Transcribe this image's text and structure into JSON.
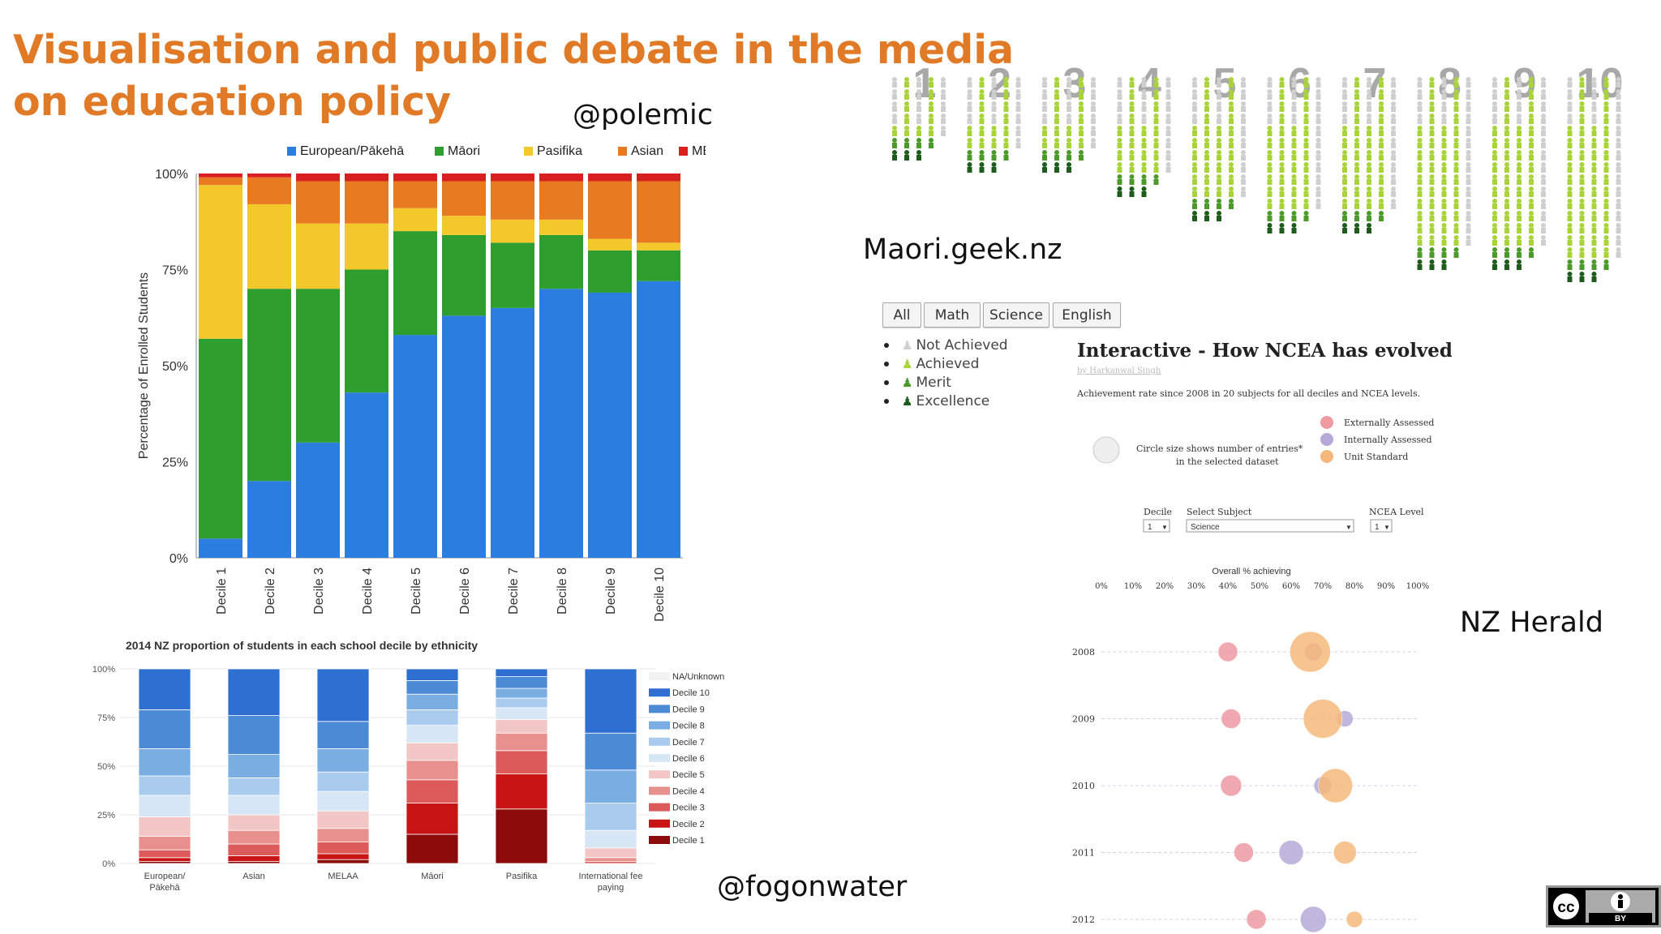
{
  "slide": {
    "title": "Visualisation and public debate in the media on education policy",
    "credits": {
      "polemic": "@polemic",
      "maori_geek": "Maori.geek.nz",
      "fogonwater": "@fogonwater",
      "nz_herald": "NZ Herald"
    },
    "license_badge": {
      "cc": "cc",
      "by": "BY"
    }
  },
  "chart_data": [
    {
      "id": "ethnicity_by_decile",
      "type": "bar",
      "stacked": true,
      "categories": [
        "Decile 1",
        "Decile 2",
        "Decile 3",
        "Decile 4",
        "Decile 5",
        "Decile 6",
        "Decile 7",
        "Decile 8",
        "Decile 9",
        "Decile 10"
      ],
      "ylabel": "Percentage of Enrolled Students",
      "ylim": [
        0,
        100
      ],
      "yticks": [
        "0%",
        "25%",
        "50%",
        "75%",
        "100%"
      ],
      "legend_placement": "top",
      "series": [
        {
          "name": "European/Pākehā",
          "color": "#2b7de0",
          "values": [
            5,
            20,
            30,
            43,
            58,
            63,
            65,
            70,
            69,
            72
          ]
        },
        {
          "name": "Māori",
          "color": "#2e9e2e",
          "values": [
            52,
            50,
            40,
            32,
            27,
            21,
            17,
            14,
            11,
            8
          ]
        },
        {
          "name": "Pasifika",
          "color": "#f2c82a",
          "values": [
            40,
            22,
            17,
            12,
            6,
            5,
            6,
            4,
            3,
            2
          ]
        },
        {
          "name": "Asian",
          "color": "#e87a22",
          "values": [
            2,
            7,
            11,
            11,
            7,
            9,
            10,
            10,
            15,
            16
          ]
        },
        {
          "name": "MELAA",
          "color": "#d82020",
          "values": [
            1,
            1,
            2,
            2,
            2,
            2,
            2,
            2,
            2,
            2
          ]
        }
      ]
    },
    {
      "id": "decile_by_ethnicity",
      "type": "bar",
      "stacked": true,
      "title": "2014 NZ proportion of students in each school decile by ethnicity",
      "categories": [
        "European/\nPākehā",
        "Asian",
        "MELAA",
        "Māori",
        "Pasifika",
        "International fee\npaying"
      ],
      "ylim": [
        0,
        100
      ],
      "yticks": [
        "0%",
        "25%",
        "50%",
        "75%",
        "100%"
      ],
      "legend_placement": "right",
      "series": [
        {
          "name": "Decile 1",
          "color": "#8b0a0a",
          "values": [
            1,
            1,
            2,
            15,
            28,
            0
          ]
        },
        {
          "name": "Decile 2",
          "color": "#c81414",
          "values": [
            2,
            3,
            3,
            16,
            18,
            0
          ]
        },
        {
          "name": "Decile 3",
          "color": "#dc5a5a",
          "values": [
            4,
            6,
            6,
            12,
            12,
            1
          ]
        },
        {
          "name": "Decile 4",
          "color": "#e8908e",
          "values": [
            7,
            7,
            7,
            10,
            9,
            2
          ]
        },
        {
          "name": "Decile 5",
          "color": "#f3c6c6",
          "values": [
            10,
            8,
            9,
            9,
            7,
            5
          ]
        },
        {
          "name": "Decile 6",
          "color": "#d7e6f5",
          "values": [
            11,
            10,
            10,
            9,
            6,
            9
          ]
        },
        {
          "name": "Decile 7",
          "color": "#a9cbee",
          "values": [
            10,
            9,
            10,
            8,
            5,
            14
          ]
        },
        {
          "name": "Decile 8",
          "color": "#7aaee3",
          "values": [
            14,
            12,
            12,
            8,
            5,
            17
          ]
        },
        {
          "name": "Decile 9",
          "color": "#4b8ad4",
          "values": [
            20,
            20,
            14,
            7,
            6,
            19
          ]
        },
        {
          "name": "Decile 10",
          "color": "#2f6fd2",
          "values": [
            21,
            24,
            27,
            6,
            4,
            33
          ]
        },
        {
          "name": "NA/Unknown",
          "color": "#f2f2f2",
          "values": [
            0,
            0,
            0,
            0,
            0,
            0
          ]
        }
      ]
    },
    {
      "id": "ncea_achievement_icons",
      "type": "table",
      "categories": [
        "1",
        "2",
        "3",
        "4",
        "5",
        "6",
        "7",
        "8",
        "9",
        "10"
      ],
      "x_label_note": "",
      "levels": [
        {
          "name": "Not Achieved",
          "color": "#cfcfcf"
        },
        {
          "name": "Achieved",
          "color": "#a8d43a"
        },
        {
          "name": "Merit",
          "color": "#4c9a2a"
        },
        {
          "name": "Excellence",
          "color": "#1d5c1d"
        }
      ],
      "column_heights": [
        3,
        4,
        4,
        6,
        8,
        9,
        9,
        12,
        12,
        13
      ],
      "tabs": [
        "All",
        "Math",
        "Science",
        "English"
      ]
    },
    {
      "id": "ncea_evolved",
      "type": "scatter",
      "title": "Interactive - How NCEA has evolved",
      "byline": "by Harkanwal Singh",
      "subtitle": "Achievement rate since 2008 in 20 subjects for all deciles and NCEA levels.",
      "size_note_line1": "Circle size shows number of entries*",
      "size_note_line2": "in the selected dataset",
      "controls": {
        "decile_label": "Decile",
        "decile_value": "1",
        "subject_label": "Select Subject",
        "subject_value": "Science",
        "level_label": "NCEA Level",
        "level_value": "1"
      },
      "xlabel": "Overall % achieving",
      "xticks": [
        "0%",
        "10%",
        "20%",
        "30%",
        "40%",
        "50%",
        "60%",
        "70%",
        "80%",
        "90%",
        "100%"
      ],
      "xlim": [
        0,
        100
      ],
      "series": [
        {
          "name": "Externally Assessed",
          "color": "#ef9aa3",
          "points": [
            {
              "year": "2008",
              "x": 40,
              "size": 12
            },
            {
              "year": "2009",
              "x": 41,
              "size": 12
            },
            {
              "year": "2010",
              "x": 41,
              "size": 13
            },
            {
              "year": "2011",
              "x": 45,
              "size": 12
            },
            {
              "year": "2012",
              "x": 49,
              "size": 12
            }
          ]
        },
        {
          "name": "Internally Assessed",
          "color": "#b6a9d8",
          "points": [
            {
              "year": "2008",
              "x": 67,
              "size": 11
            },
            {
              "year": "2009",
              "x": 77,
              "size": 10
            },
            {
              "year": "2010",
              "x": 70,
              "size": 11
            },
            {
              "year": "2011",
              "x": 60,
              "size": 15
            },
            {
              "year": "2012",
              "x": 67,
              "size": 16
            }
          ]
        },
        {
          "name": "Unit Standard",
          "color": "#f6b87a",
          "points": [
            {
              "year": "2008",
              "x": 66,
              "size": 25
            },
            {
              "year": "2009",
              "x": 70,
              "size": 24
            },
            {
              "year": "2010",
              "x": 74,
              "size": 21
            },
            {
              "year": "2011",
              "x": 77,
              "size": 14
            },
            {
              "year": "2012",
              "x": 80,
              "size": 10
            }
          ]
        }
      ],
      "years": [
        "2008",
        "2009",
        "2010",
        "2011",
        "2012"
      ]
    }
  ]
}
